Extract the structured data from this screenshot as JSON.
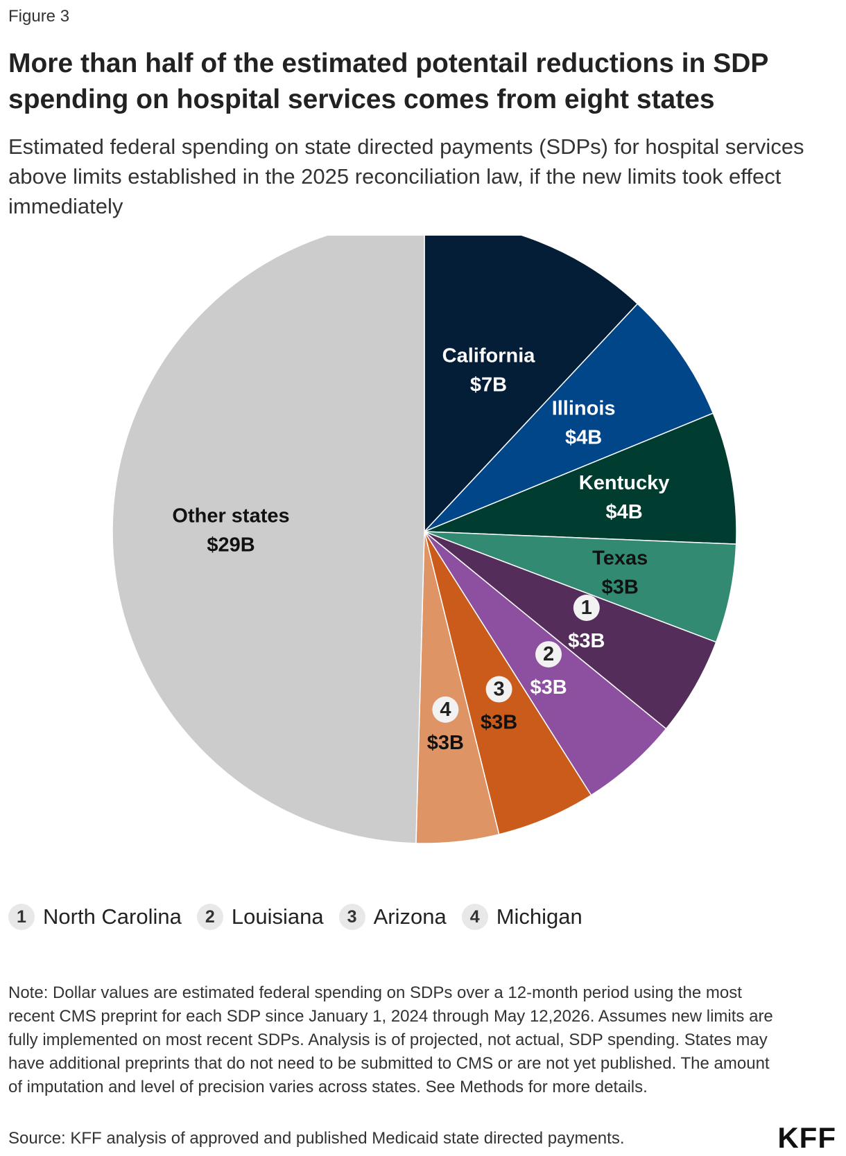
{
  "figure_label": "Figure 3",
  "chart_data": {
    "type": "pie",
    "title": "More than half of the estimated potentail reductions in SDP spending on hospital services comes from eight states",
    "subtitle": "Estimated federal spending on state directed payments (SDPs) for hospital services above limits established in the 2025 reconciliation law, if the new limits took effect immediately",
    "slices": [
      {
        "label": "California",
        "value": 7,
        "display": "$7B",
        "color": "#041e37",
        "text_color": "#ffffff",
        "badge": ""
      },
      {
        "label": "Illinois",
        "value": 4,
        "display": "$4B",
        "color": "#004689",
        "text_color": "#ffffff",
        "badge": ""
      },
      {
        "label": "Kentucky",
        "value": 4,
        "display": "$4B",
        "color": "#003c30",
        "text_color": "#ffffff",
        "badge": ""
      },
      {
        "label": "Texas",
        "value": 3,
        "display": "$3B",
        "color": "#338a73",
        "text_color": "#111111",
        "badge": ""
      },
      {
        "label": "",
        "value": 3,
        "display": "$3B",
        "color": "#552d5b",
        "text_color": "#ffffff",
        "badge": "1"
      },
      {
        "label": "",
        "value": 3,
        "display": "$3B",
        "color": "#8d4f9f",
        "text_color": "#ffffff",
        "badge": "2"
      },
      {
        "label": "",
        "value": 3,
        "display": "$3B",
        "color": "#cb5b1b",
        "text_color": "#111111",
        "badge": "3"
      },
      {
        "label": "",
        "value": 2.5,
        "display": "$3B",
        "color": "#de9464",
        "text_color": "#111111",
        "badge": "4"
      },
      {
        "label": "Other states",
        "value": 29,
        "display": "$29B",
        "color": "#cccccc",
        "text_color": "#111111",
        "badge": ""
      }
    ]
  },
  "legend": [
    {
      "badge": "1",
      "label": "North Carolina"
    },
    {
      "badge": "2",
      "label": "Louisiana"
    },
    {
      "badge": "3",
      "label": "Arizona"
    },
    {
      "badge": "4",
      "label": "Michigan"
    }
  ],
  "note": "Note: Dollar values are estimated federal spending on SDPs over a 12-month period using the most recent CMS preprint for each SDP since January 1, 2024 through May 12,2026. Assumes new limits are fully implemented on most recent SDPs. Analysis is of projected, not actual, SDP spending. States may have additional preprints that do not need to be submitted to CMS or are not yet published. The amount of imputation and level of precision varies across states. See Methods for more details.",
  "source": "Source: KFF analysis of approved and published Medicaid state directed payments.",
  "logo": "KFF"
}
